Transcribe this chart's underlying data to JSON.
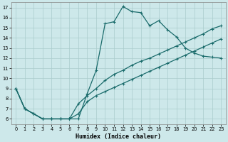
{
  "xlabel": "Humidex (Indice chaleur)",
  "bg_color": "#cde8ea",
  "grid_color": "#aacccc",
  "line_color": "#1a6b6b",
  "xlim": [
    -0.5,
    23.5
  ],
  "ylim": [
    5.5,
    17.5
  ],
  "xticks": [
    0,
    1,
    2,
    3,
    4,
    5,
    6,
    7,
    8,
    9,
    10,
    11,
    12,
    13,
    14,
    15,
    16,
    17,
    18,
    19,
    20,
    21,
    22,
    23
  ],
  "yticks": [
    6,
    7,
    8,
    9,
    10,
    11,
    12,
    13,
    14,
    15,
    16,
    17
  ],
  "line1_x": [
    0,
    1,
    2,
    3,
    4,
    5,
    6,
    7,
    8,
    9,
    10,
    11,
    12,
    13,
    14,
    15,
    16,
    17,
    18,
    19,
    20,
    21,
    22,
    23
  ],
  "line1_y": [
    9,
    7,
    6.5,
    6,
    6,
    6,
    6,
    6,
    8.5,
    10.8,
    15.4,
    15.6,
    17.1,
    16.6,
    16.5,
    15.2,
    15.7,
    14.8,
    14.1,
    13.0,
    12.5,
    12.2,
    12.1,
    12.0
  ],
  "line2_x": [
    0,
    1,
    2,
    3,
    4,
    5,
    6,
    7,
    8,
    9,
    10,
    11,
    12,
    13,
    14,
    15,
    16,
    17,
    18,
    19,
    20,
    21,
    22,
    23
  ],
  "line2_y": [
    9,
    7,
    6.5,
    6,
    6,
    6,
    6,
    7.5,
    8.3,
    9.0,
    9.8,
    10.4,
    10.8,
    11.3,
    11.7,
    12.0,
    12.4,
    12.8,
    13.2,
    13.6,
    14.0,
    14.4,
    14.9,
    15.2
  ],
  "line3_x": [
    0,
    1,
    2,
    3,
    4,
    5,
    6,
    7,
    8,
    9,
    10,
    11,
    12,
    13,
    14,
    15,
    16,
    17,
    18,
    19,
    20,
    21,
    22,
    23
  ],
  "line3_y": [
    9,
    7,
    6.5,
    6,
    6,
    6,
    6,
    6.5,
    7.7,
    8.3,
    8.7,
    9.1,
    9.5,
    9.9,
    10.3,
    10.7,
    11.1,
    11.5,
    11.9,
    12.3,
    12.7,
    13.1,
    13.5,
    13.9
  ]
}
